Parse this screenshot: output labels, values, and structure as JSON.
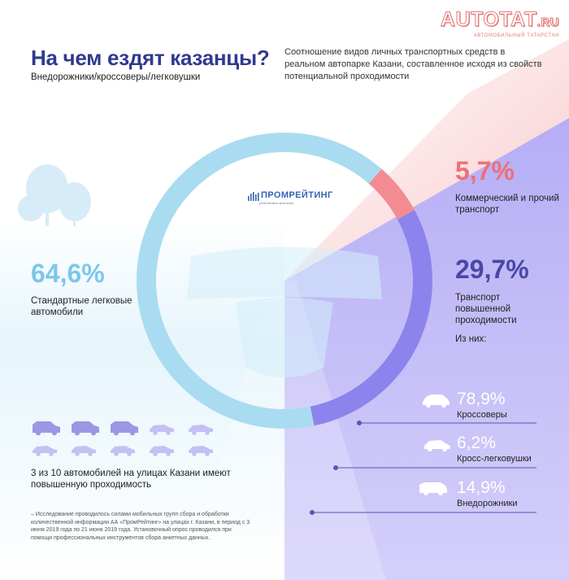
{
  "header": {
    "title": "На чем ездят казанцы?",
    "subtitle": "Внедорожники/кроссоверы/легковушки",
    "description": "Соотношение видов личных транспортных средств в реальном автопарке Казани, составленное исходя из свойств потенциальной проходимости"
  },
  "logo": {
    "main": "AUTOTAT",
    "suffix": ".RU",
    "tagline": "АВТОМОБИЛЬНЫЙ ТАТАРСТАН"
  },
  "brand": {
    "name": "ПРОМРЕЙТИНГ",
    "tagline": "рейтинговое агентство"
  },
  "chart_data": {
    "type": "pie",
    "slices": [
      {
        "label": "Стандартные легковые автомобили",
        "value": 64.6,
        "value_label": "64,6%",
        "color": "#a9dcf0"
      },
      {
        "label": "Коммерческий и прочий транспорт",
        "value": 5.7,
        "value_label": "5,7%",
        "color": "#f28c92"
      },
      {
        "label": "Транспорт повышенной проходимости",
        "value": 29.7,
        "value_label": "29,7%",
        "color": "#8d83ec"
      }
    ],
    "breakdown_title": "Из них:",
    "breakdown": [
      {
        "label": "Кроссоверы",
        "value": 78.9,
        "value_label": "78,9%",
        "icon": "crossover-icon"
      },
      {
        "label": "Кросс-легковушки",
        "value": 6.2,
        "value_label": "6,2%",
        "icon": "cross-sedan-icon"
      },
      {
        "label": "Внедорожники",
        "value": 14.9,
        "value_label": "14,9%",
        "icon": "suv-icon"
      }
    ],
    "pictogram": {
      "total": 10,
      "highlighted": 3,
      "highlight_color": "#9d96e4",
      "base_color": "#c5c0f2"
    }
  },
  "labels": {
    "standard_pct": "64,6%",
    "standard_text": "Стандартные легковые автомобили",
    "commercial_pct": "5,7%",
    "commercial_text": "Коммерческий и прочий транспорт",
    "highpass_pct": "29,7%",
    "highpass_text": "Транспорт повышенной проходимости",
    "of_them": "Из них:"
  },
  "note": "3 из 10 автомобилей на улицах Казани имеют повышенную проходимость",
  "footnote": "– Исследование проводилось силами мобильных групп сбора и обработки количественной информации АА «ПромРейтинг» на улицах г. Казани, в период с 3 июня 2019 года по 21 июня 2019 года. Установочный опрос проводился при помощи профессиональных инструментов сбора анкетных данных."
}
